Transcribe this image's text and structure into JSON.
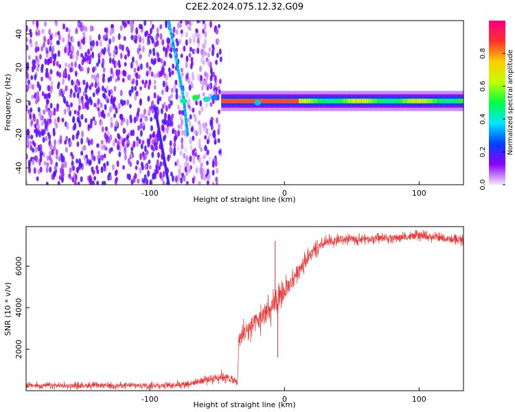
{
  "title": "C2E2.2024.075.12.32.G09",
  "chart_data": [
    {
      "type": "heatmap",
      "xlabel": "Height of straight line (km)",
      "ylabel": "Frequency (Hz)",
      "xlim": [
        -192,
        133
      ],
      "ylim": [
        -50,
        48
      ],
      "xticks": [
        -100,
        0,
        100
      ],
      "yticks": [
        -40,
        -20,
        0,
        20,
        40
      ],
      "colorbar": {
        "label": "Normalized spectral amplitude",
        "range": [
          0,
          1
        ],
        "ticks": [
          "0.0",
          "0.2",
          "0.4",
          "0.6",
          "0.8"
        ],
        "colors": [
          "#f2e6ff",
          "#8a00ff",
          "#0040ff",
          "#00e6ff",
          "#00ff40",
          "#c0ff00",
          "#ffcc00",
          "#ff3030",
          "#ff0080"
        ]
      },
      "features": [
        {
          "name": "carrier-line",
          "freq": 0,
          "x_range": [
            -47,
            133
          ],
          "amplitude": 0.55
        },
        {
          "name": "strong-carrier",
          "freq": 0,
          "x_range": [
            -45,
            10
          ],
          "amplitude": 0.85
        },
        {
          "name": "diagonal-trace",
          "points": [
            [
              -86,
              48
            ],
            [
              -75,
              2
            ],
            [
              -72,
              -20
            ]
          ],
          "amplitude": 0.3
        },
        {
          "name": "lower-diagonal",
          "points": [
            [
              -96,
              -5
            ],
            [
              -86,
              -50
            ]
          ],
          "amplitude": 0.15
        },
        {
          "name": "noise-region",
          "x_range": [
            -192,
            -47
          ],
          "amplitude": 0.15
        }
      ]
    },
    {
      "type": "line",
      "xlabel": "Height of straight line (km)",
      "ylabel": "SNR (10 * v/v)",
      "xlim": [
        -192,
        133
      ],
      "ylim": [
        0,
        7900
      ],
      "xticks": [
        -100,
        0,
        100
      ],
      "yticks": [
        2000,
        4000,
        6000
      ],
      "color": "#ee3333",
      "series": [
        {
          "x": [
            -192,
            -150,
            -120,
            -90,
            -80,
            -70,
            -60,
            -50,
            -45,
            -35,
            -34,
            -30,
            -25,
            -20,
            -15,
            -10,
            -7,
            -5,
            0,
            5,
            10,
            20,
            30,
            40,
            50,
            60,
            70,
            80,
            90,
            100,
            110,
            120,
            133
          ],
          "values": [
            250,
            250,
            250,
            260,
            300,
            350,
            500,
            650,
            700,
            400,
            2400,
            2800,
            3100,
            3300,
            3700,
            3800,
            4300,
            4200,
            4800,
            5200,
            5800,
            6600,
            7100,
            7250,
            7300,
            7300,
            7350,
            7350,
            7400,
            7450,
            7400,
            7300,
            7250
          ],
          "noise": [
            200,
            200,
            200,
            200,
            220,
            250,
            300,
            350,
            350,
            300,
            700,
            800,
            850,
            900,
            900,
            900,
            900,
            1000,
            800,
            700,
            600,
            500,
            400,
            350,
            300,
            300,
            300,
            300,
            300,
            300,
            300,
            300,
            300
          ]
        }
      ],
      "annotations": [
        {
          "name": "spike",
          "x": -7,
          "y": 7200
        },
        {
          "name": "dip",
          "x": -5,
          "y": 1600
        }
      ]
    }
  ]
}
